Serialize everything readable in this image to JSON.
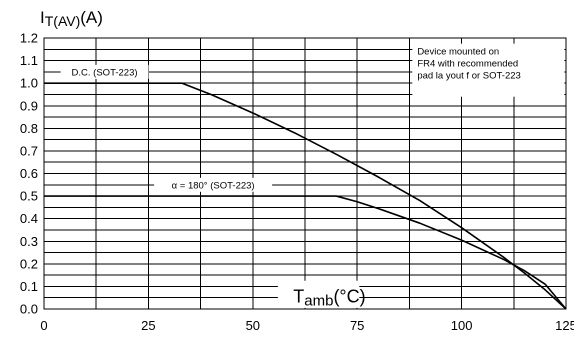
{
  "chart_data": {
    "type": "line",
    "title": "",
    "ylabel": {
      "main": "I",
      "sub": "T(AV)",
      "rest": "(A)"
    },
    "xlabel": {
      "main": "T",
      "sub": "amb",
      "rest": "(°C)"
    },
    "xlim": [
      0,
      125
    ],
    "ylim": [
      0,
      1.2
    ],
    "x_ticks": [
      0,
      25,
      50,
      75,
      100,
      125
    ],
    "x_tick_labels": [
      "0",
      "25",
      "50",
      "75",
      "100",
      "125"
    ],
    "y_ticks": [
      0,
      0.1,
      0.2,
      0.3,
      0.4,
      0.5,
      0.6,
      0.7,
      0.8,
      0.9,
      1.0,
      1.1,
      1.2
    ],
    "y_tick_labels": [
      "0.0",
      "0.1",
      "0.2",
      "0.3",
      "0.4",
      "0.5",
      "0.6",
      "0.7",
      "0.8",
      "0.9",
      "1.0",
      "1.1",
      "1.2"
    ],
    "x_gridlines": [
      0,
      12.5,
      25,
      37.5,
      50,
      62.5,
      75,
      87.5,
      100,
      112.5,
      125
    ],
    "y_gridlines": [
      0,
      0.05,
      0.1,
      0.15,
      0.2,
      0.25,
      0.3,
      0.35,
      0.4,
      0.45,
      0.5,
      0.55,
      0.6,
      0.65,
      0.7,
      0.75,
      0.8,
      0.85,
      0.9,
      0.95,
      1.0,
      1.05,
      1.1,
      1.15,
      1.2
    ],
    "grid": true,
    "series": [
      {
        "name": "D.C. (SOT-223)",
        "x": [
          0,
          33,
          40,
          50,
          60,
          70,
          80,
          90,
          100,
          110,
          115,
          120,
          125
        ],
        "y": [
          1.0,
          1.0,
          0.95,
          0.868,
          0.78,
          0.685,
          0.585,
          0.48,
          0.36,
          0.23,
          0.16,
          0.085,
          0.0
        ]
      },
      {
        "name": "α = 180° (SOT-223)",
        "x": [
          0,
          70,
          75,
          80,
          90,
          100,
          110,
          115,
          120,
          125
        ],
        "y": [
          0.5,
          0.5,
          0.475,
          0.445,
          0.38,
          0.305,
          0.22,
          0.17,
          0.11,
          0.0
        ]
      }
    ],
    "annotations": {
      "note_lines": [
        "Device mounted on",
        "FR4 with recommended",
        "pad la yout f or SOT-223"
      ]
    }
  }
}
